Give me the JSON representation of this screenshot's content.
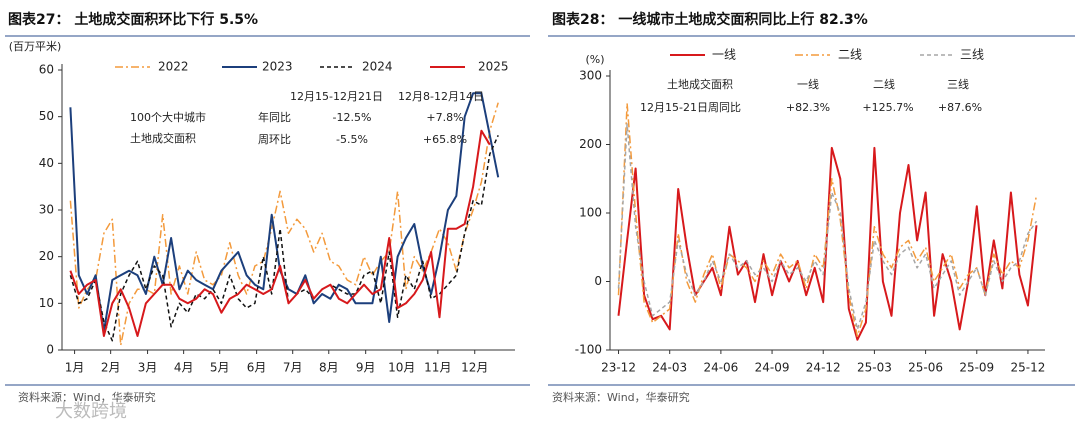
{
  "chart_data": [
    {
      "type": "line",
      "title": "图表27： 土地成交面积环比下行 5.5%",
      "y_label": "(百万平米)",
      "source": "资料来源：Wind，华泰研究",
      "watermark": "大数跨境",
      "x": [
        1,
        2,
        3,
        4,
        5,
        6,
        7,
        8,
        9,
        10,
        11,
        12,
        13,
        14,
        15,
        16,
        17,
        18,
        19,
        20,
        21,
        22,
        23,
        24,
        25,
        26,
        27,
        28,
        29,
        30,
        31,
        32,
        33,
        34,
        35,
        36,
        37,
        38,
        39,
        40,
        41,
        42,
        43,
        44,
        45,
        46,
        47,
        48,
        49,
        50,
        51,
        52
      ],
      "xlim": [
        0,
        54
      ],
      "xticks": [
        {
          "value": 1.5,
          "label": "1月"
        },
        {
          "value": 5.8,
          "label": "2月"
        },
        {
          "value": 10.2,
          "label": "3月"
        },
        {
          "value": 14.5,
          "label": "4月"
        },
        {
          "value": 18.8,
          "label": "5月"
        },
        {
          "value": 23.2,
          "label": "6月"
        },
        {
          "value": 27.5,
          "label": "7月"
        },
        {
          "value": 31.8,
          "label": "8月"
        },
        {
          "value": 36.2,
          "label": "9月"
        },
        {
          "value": 40.5,
          "label": "10月"
        },
        {
          "value": 44.8,
          "label": "11月"
        },
        {
          "value": 49.2,
          "label": "12月"
        }
      ],
      "ylim": [
        0,
        60
      ],
      "yticks": [
        0,
        10,
        20,
        30,
        40,
        50,
        60
      ],
      "series": [
        {
          "name": "2022",
          "color": "#f39a3c",
          "dash": "dashdot",
          "values": [
            32,
            9,
            13,
            15,
            25,
            28,
            1,
            10,
            13,
            13,
            12,
            29,
            12,
            18,
            12,
            21,
            15,
            14,
            16,
            23,
            16,
            12,
            18,
            19,
            26,
            34,
            25,
            28,
            26,
            21,
            25,
            19,
            18,
            15,
            14,
            20,
            16,
            19,
            21,
            34,
            13,
            20,
            17,
            21,
            26,
            23,
            17,
            25,
            30,
            36,
            47,
            53
          ]
        },
        {
          "name": "2023",
          "color": "#1c3f7c",
          "dash": "solid",
          "values": [
            52,
            16,
            12,
            16,
            4,
            15,
            16,
            17,
            16,
            12,
            20,
            14,
            24,
            13,
            17,
            15,
            14,
            13,
            17,
            19,
            21,
            16,
            14,
            13,
            29,
            17,
            13,
            12,
            16,
            10,
            12,
            11,
            14,
            13,
            10,
            10,
            10,
            20,
            6,
            20,
            24,
            27,
            18,
            12,
            20,
            30,
            33,
            50,
            55,
            55,
            46,
            37
          ]
        },
        {
          "name": "2024",
          "color": "#111111",
          "dash": "dashed",
          "values": [
            16,
            10,
            11,
            15,
            6,
            2,
            12,
            16,
            19,
            13,
            18,
            16,
            5,
            10,
            8,
            12,
            11,
            13,
            10,
            16,
            11,
            9,
            10,
            20,
            12,
            26,
            10,
            12,
            13,
            11,
            13,
            14,
            13,
            12,
            12,
            16,
            17,
            10,
            21,
            7,
            16,
            13,
            19,
            11,
            12,
            14,
            16,
            25,
            32,
            31,
            42,
            46
          ]
        },
        {
          "name": "2025",
          "color": "#d7191c",
          "dash": "solid",
          "values": [
            17,
            12,
            14,
            15,
            3,
            10,
            13,
            9,
            3,
            10,
            12,
            14,
            14,
            11,
            10,
            11,
            13,
            12,
            8,
            11,
            12,
            14,
            13,
            12,
            13,
            18,
            10,
            12,
            15,
            11,
            13,
            14,
            11,
            10,
            12,
            14,
            12,
            13,
            24,
            9,
            10,
            12,
            15,
            21,
            7,
            26,
            26,
            27,
            35,
            47,
            44,
            null
          ]
        }
      ],
      "annotation": {
        "header": [
          "12月15-12月21日",
          "12月8-12月14日"
        ],
        "label": [
          "100个大中城市",
          "土地成交面积"
        ],
        "rows": [
          [
            "年同比",
            "-12.5%",
            "+7.8%"
          ],
          [
            "周环比",
            "-5.5%",
            "+65.8%"
          ]
        ]
      }
    },
    {
      "type": "line",
      "title": "图表28： 一线城市土地成交面积同比上行 82.3%",
      "y_label": "(%)",
      "source": "资料来源：Wind，华泰研究",
      "x": [
        0,
        0.5,
        1,
        1.5,
        2,
        2.5,
        3,
        3.5,
        4,
        4.5,
        5,
        5.5,
        6,
        6.5,
        7,
        7.5,
        8,
        8.5,
        9,
        9.5,
        10,
        10.5,
        11,
        11.5,
        12,
        12.5,
        13,
        13.5,
        14,
        14.5,
        15,
        15.5,
        16,
        16.5,
        17,
        17.5,
        18,
        18.5,
        19,
        19.5,
        20,
        20.5,
        21,
        21.5,
        22,
        22.5,
        23,
        23.5,
        24,
        24.5
      ],
      "xlim": [
        -0.5,
        25
      ],
      "xticks": [
        {
          "value": 0,
          "label": "23-12"
        },
        {
          "value": 3,
          "label": "24-03"
        },
        {
          "value": 6,
          "label": "24-06"
        },
        {
          "value": 9,
          "label": "24-09"
        },
        {
          "value": 12,
          "label": "24-12"
        },
        {
          "value": 15,
          "label": "25-03"
        },
        {
          "value": 18,
          "label": "25-06"
        },
        {
          "value": 21,
          "label": "25-09"
        },
        {
          "value": 24,
          "label": "25-12"
        }
      ],
      "ylim": [
        -100,
        300
      ],
      "yticks": [
        -100,
        0,
        100,
        200,
        300
      ],
      "series": [
        {
          "name": "一线",
          "color": "#d7191c",
          "dash": "solid",
          "values": [
            -50,
            60,
            165,
            -20,
            -55,
            -50,
            -70,
            135,
            50,
            -20,
            0,
            20,
            -20,
            80,
            10,
            30,
            -30,
            40,
            -20,
            30,
            0,
            30,
            -20,
            20,
            -30,
            195,
            150,
            -40,
            -85,
            -60,
            195,
            0,
            -50,
            100,
            170,
            60,
            130,
            -50,
            40,
            0,
            -70,
            0,
            110,
            -20,
            60,
            -10,
            130,
            10,
            -35,
            82
          ]
        },
        {
          "name": "二线",
          "color": "#f39a3c",
          "dash": "dashdot",
          "values": [
            -20,
            260,
            100,
            -30,
            -60,
            -50,
            -40,
            70,
            0,
            -30,
            10,
            40,
            -10,
            40,
            30,
            20,
            0,
            30,
            10,
            40,
            20,
            30,
            -10,
            40,
            20,
            150,
            90,
            -20,
            -80,
            -40,
            80,
            40,
            20,
            50,
            60,
            30,
            50,
            0,
            20,
            40,
            -10,
            10,
            20,
            -20,
            40,
            10,
            30,
            20,
            60,
            126
          ]
        },
        {
          "name": "三线",
          "color": "#a6a6a6",
          "dash": "dashed",
          "values": [
            -10,
            230,
            80,
            0,
            -50,
            -40,
            -30,
            60,
            10,
            -20,
            0,
            30,
            0,
            40,
            20,
            30,
            10,
            20,
            0,
            30,
            10,
            20,
            0,
            30,
            10,
            130,
            100,
            -10,
            -70,
            -30,
            60,
            30,
            10,
            40,
            50,
            20,
            40,
            -10,
            10,
            30,
            -20,
            0,
            20,
            -20,
            30,
            0,
            20,
            30,
            70,
            88
          ]
        }
      ],
      "annotation": {
        "header": [
          "土地成交面积",
          "一线",
          "二线",
          "三线"
        ],
        "rows": [
          [
            "12月15-21日周同比",
            "+82.3%",
            "+125.7%",
            "+87.6%"
          ]
        ]
      }
    }
  ]
}
